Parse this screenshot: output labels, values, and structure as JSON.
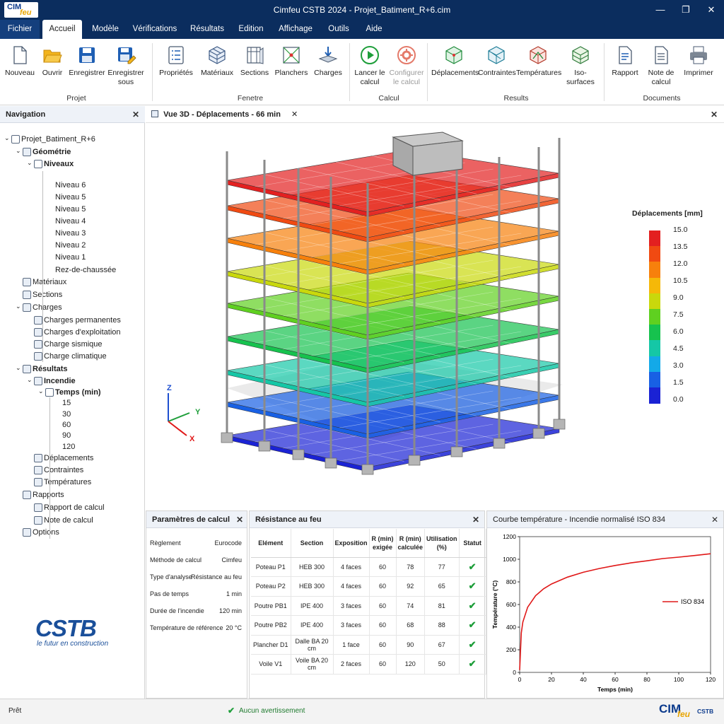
{
  "app": {
    "title": "Cimfeu CSTB 2024 - Projet_Batiment_R+6.cim",
    "logo_text_1": "CIM",
    "logo_text_2": "feu",
    "window_controls": [
      "minimize-icon",
      "maximize-icon",
      "close-icon"
    ]
  },
  "menu": {
    "items": [
      "Fichier",
      "Accueil",
      "Modèle",
      "Vérifications",
      "Résultats",
      "Edition",
      "Affichage",
      "Outils",
      "Aide"
    ],
    "active": "Accueil"
  },
  "ribbon": {
    "buttons": [
      {
        "label": "Nouveau",
        "icon": "new-file-icon"
      },
      {
        "label": "Ouvrir",
        "icon": "open-folder-icon"
      },
      {
        "label": "Enregistrer",
        "icon": "save-icon"
      },
      {
        "label": "Enregistrer sous",
        "icon": "save-as-icon"
      },
      {
        "label": "Propriétés",
        "icon": "properties-icon"
      },
      {
        "label": "Matériaux",
        "icon": "materials-icon"
      },
      {
        "label": "Sections",
        "icon": "sections-icon"
      },
      {
        "label": "Planchers",
        "icon": "floors-icon"
      },
      {
        "label": "Charges",
        "icon": "loads-icon"
      },
      {
        "label": "Lancer le calcul",
        "icon": "run-calc-icon"
      },
      {
        "label": "Configurer le calcul",
        "icon": "configure-calc-icon"
      },
      {
        "label": "Déplacements",
        "icon": "displacements-icon"
      },
      {
        "label": "Contraintes",
        "icon": "stresses-icon"
      },
      {
        "label": "Températures",
        "icon": "temperatures-icon"
      },
      {
        "label": "Iso-surfaces",
        "icon": "iso-surfaces-icon"
      },
      {
        "label": "Rapport",
        "icon": "report-icon"
      },
      {
        "label": "Note de calcul",
        "icon": "calc-note-icon"
      },
      {
        "label": "Imprimer",
        "icon": "print-icon"
      }
    ],
    "groups": [
      "Projet",
      "Fenetre",
      "Calcul",
      "Results",
      "Documents"
    ]
  },
  "navigation": {
    "title": "Navigation",
    "items": [
      {
        "label": "Projet_Batiment_R+6",
        "level": 0
      },
      {
        "label": "Géométrie",
        "level": 1
      },
      {
        "label": "Niveaux",
        "level": 2
      },
      {
        "label": "Niveau 6",
        "level": 3
      },
      {
        "label": "Niveau 5",
        "level": 3
      },
      {
        "label": "Niveau 5",
        "level": 3
      },
      {
        "label": "Niveau 4",
        "level": 3
      },
      {
        "label": "Niveau 3",
        "level": 3
      },
      {
        "label": "Niveau 2",
        "level": 3
      },
      {
        "label": "Niveau 1",
        "level": 3
      },
      {
        "label": "Rez-de-chaussée",
        "level": 3
      },
      {
        "label": "Matériaux",
        "level": 1
      },
      {
        "label": "Sections",
        "level": 1
      },
      {
        "label": "Charges",
        "level": 1
      },
      {
        "label": "Charges permanentes",
        "level": 2
      },
      {
        "label": "Charges d'exploitation",
        "level": 2
      },
      {
        "label": "Charge sismique",
        "level": 2
      },
      {
        "label": "Charge climatique",
        "level": 2
      },
      {
        "label": "Résultats",
        "level": 1
      },
      {
        "label": "Incendie",
        "level": 2
      },
      {
        "label": "Temps (min)",
        "level": 3
      },
      {
        "label": "15",
        "level": 4
      },
      {
        "label": "30",
        "level": 4
      },
      {
        "label": "60",
        "level": 4
      },
      {
        "label": "90",
        "level": 4
      },
      {
        "label": "120",
        "level": 4
      },
      {
        "label": "Déplacements",
        "level": 2
      },
      {
        "label": "Contraintes",
        "level": 2
      },
      {
        "label": "Températures",
        "level": 2
      },
      {
        "label": "Rapports",
        "level": 1
      },
      {
        "label": "Rapport de calcul",
        "level": 2
      },
      {
        "label": "Note de calcul",
        "level": 2
      },
      {
        "label": "Options",
        "level": 1
      }
    ],
    "brand_main": "CSTB",
    "brand_tagline": "le futur en construction"
  },
  "view3d": {
    "tab_title": "Vue 3D - Déplacements - 66 min",
    "legend_title": "Déplacements [mm]",
    "legend_values": [
      "15.0",
      "13.5",
      "12.0",
      "10.5",
      "9.0",
      "7.5",
      "6.0",
      "4.5",
      "3.0",
      "1.5",
      "0.0"
    ],
    "legend_colors": [
      "#e32020",
      "#f04a12",
      "#f7800c",
      "#f5b808",
      "#c9d80c",
      "#5fd020",
      "#16c24e",
      "#15c7a6",
      "#13a9e8",
      "#1860e4",
      "#1a22d4"
    ],
    "axis_labels": [
      "Z",
      "Y",
      "X"
    ]
  },
  "params": {
    "title": "Paramètres de calcul",
    "rows": [
      {
        "label": "Règlement",
        "value": "Eurocode"
      },
      {
        "label": "Méthode de calcul",
        "value": "Cimfeu"
      },
      {
        "label": "Type d'analyse",
        "value": "Résistance au feu"
      },
      {
        "label": "Pas de temps",
        "value": "1 min"
      },
      {
        "label": "Durée de l'incendie",
        "value": "120 min"
      },
      {
        "label": "Température de référence",
        "value": "20 °C"
      }
    ]
  },
  "resistance": {
    "title": "Résistance au feu",
    "headers": [
      "Elément",
      "Section",
      "Exposition",
      "R (min) exigée",
      "R (min) calculée",
      "Utilisation (%)",
      "Statut"
    ],
    "rows": [
      [
        "Poteau P1",
        "HEB 300",
        "4 faces",
        "60",
        "78",
        "77"
      ],
      [
        "Poteau P2",
        "HEB 300",
        "4 faces",
        "60",
        "92",
        "65"
      ],
      [
        "Poutre PB1",
        "IPE 400",
        "3 faces",
        "60",
        "74",
        "81"
      ],
      [
        "Poutre PB2",
        "IPE 400",
        "3 faces",
        "60",
        "68",
        "88"
      ],
      [
        "Plancher D1",
        "Dalle BA 20 cm",
        "1 face",
        "60",
        "90",
        "67"
      ],
      [
        "Voile V1",
        "Voile BA 20 cm",
        "2 faces",
        "60",
        "120",
        "50"
      ]
    ],
    "status_icon": "check-icon"
  },
  "chart_data": {
    "type": "line",
    "title": "Courbe température - Incendie normalisé ISO 834",
    "xlabel": "Temps (min)",
    "ylabel": "Température (°C)",
    "xlim": [
      0,
      120
    ],
    "ylim": [
      0,
      1200
    ],
    "xticks": [
      0,
      20,
      40,
      60,
      80,
      100,
      120
    ],
    "yticks": [
      0,
      200,
      400,
      600,
      800,
      1000,
      1200
    ],
    "legend_placement": "right",
    "series": [
      {
        "name": "ISO 834",
        "color": "#e01818",
        "x": [
          0,
          1,
          2,
          5,
          10,
          15,
          20,
          30,
          40,
          50,
          60,
          70,
          80,
          90,
          100,
          110,
          120
        ],
        "y": [
          20,
          349,
          445,
          576,
          678,
          739,
          781,
          842,
          885,
          918,
          945,
          968,
          986,
          1006,
          1019,
          1033,
          1049
        ]
      }
    ]
  },
  "status": {
    "left": "Prêt",
    "center": "Aucun avertissement",
    "logo_text_1": "CIM",
    "logo_text_2": "feu",
    "logo_text_3": "CSTB"
  }
}
